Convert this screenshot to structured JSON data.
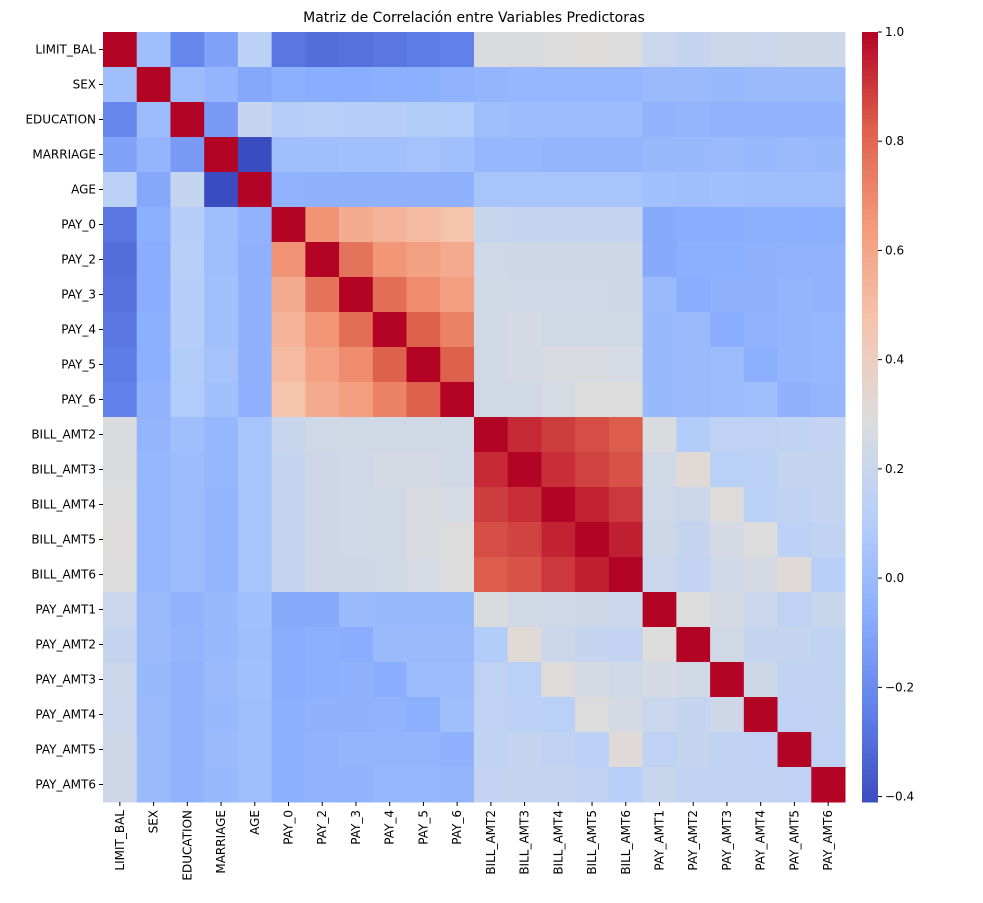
{
  "chart_data": {
    "type": "heatmap",
    "title": "Matriz de Correlación entre Variables Predictoras",
    "labels": [
      "LIMIT_BAL",
      "SEX",
      "EDUCATION",
      "MARRIAGE",
      "AGE",
      "PAY_0",
      "PAY_2",
      "PAY_3",
      "PAY_4",
      "PAY_5",
      "PAY_6",
      "BILL_AMT2",
      "BILL_AMT3",
      "BILL_AMT4",
      "BILL_AMT5",
      "BILL_AMT6",
      "PAY_AMT1",
      "PAY_AMT2",
      "PAY_AMT3",
      "PAY_AMT4",
      "PAY_AMT5",
      "PAY_AMT6"
    ],
    "values": [
      [
        1,
        0.02,
        -0.22,
        -0.11,
        0.14,
        -0.27,
        -0.3,
        -0.29,
        -0.27,
        -0.25,
        -0.24,
        0.28,
        0.28,
        0.29,
        0.3,
        0.29,
        0.2,
        0.18,
        0.21,
        0.2,
        0.22,
        0.22
      ],
      [
        0.02,
        1,
        0.01,
        -0.03,
        -0.09,
        -0.06,
        -0.07,
        -0.07,
        -0.06,
        -0.06,
        -0.04,
        -0.03,
        -0.02,
        -0.02,
        -0.02,
        -0.02,
        0.0,
        0.0,
        -0.01,
        0.0,
        0.0,
        0.0
      ],
      [
        -0.22,
        0.01,
        1,
        -0.14,
        0.18,
        0.11,
        0.12,
        0.11,
        0.11,
        0.1,
        0.09,
        0.02,
        0.01,
        0.01,
        0.01,
        0.01,
        -0.04,
        -0.03,
        -0.04,
        -0.04,
        -0.04,
        -0.04
      ],
      [
        -0.11,
        -0.03,
        -0.14,
        1,
        -0.41,
        0.02,
        0.02,
        0.03,
        0.03,
        0.04,
        0.03,
        -0.02,
        -0.02,
        -0.03,
        -0.03,
        -0.03,
        -0.01,
        -0.01,
        0.0,
        -0.01,
        0.0,
        -0.01
      ],
      [
        0.14,
        -0.09,
        0.18,
        -0.41,
        1,
        -0.04,
        -0.05,
        -0.05,
        -0.05,
        -0.05,
        -0.05,
        0.05,
        0.05,
        0.05,
        0.05,
        0.05,
        0.03,
        0.02,
        0.03,
        0.02,
        0.02,
        0.02
      ],
      [
        -0.27,
        -0.06,
        0.11,
        0.02,
        -0.04,
        1,
        0.67,
        0.57,
        0.54,
        0.51,
        0.47,
        0.19,
        0.18,
        0.18,
        0.18,
        0.18,
        -0.08,
        -0.07,
        -0.07,
        -0.06,
        -0.06,
        -0.06
      ],
      [
        -0.3,
        -0.07,
        0.12,
        0.02,
        -0.05,
        0.67,
        1,
        0.77,
        0.66,
        0.62,
        0.58,
        0.23,
        0.22,
        0.22,
        0.22,
        0.22,
        -0.08,
        -0.06,
        -0.06,
        -0.05,
        -0.04,
        -0.04
      ],
      [
        -0.29,
        -0.07,
        0.11,
        0.03,
        -0.05,
        0.57,
        0.77,
        1,
        0.78,
        0.69,
        0.63,
        0.24,
        0.23,
        0.23,
        0.23,
        0.22,
        0.0,
        -0.07,
        -0.05,
        -0.05,
        -0.03,
        -0.04
      ],
      [
        -0.27,
        -0.06,
        0.11,
        0.03,
        -0.05,
        0.54,
        0.66,
        0.78,
        1,
        0.82,
        0.72,
        0.24,
        0.25,
        0.24,
        0.24,
        0.24,
        -0.01,
        0.0,
        -0.07,
        -0.04,
        -0.03,
        -0.02
      ],
      [
        -0.25,
        -0.06,
        0.1,
        0.04,
        -0.05,
        0.51,
        0.62,
        0.69,
        0.82,
        1,
        0.82,
        0.24,
        0.25,
        0.27,
        0.27,
        0.26,
        -0.01,
        0.0,
        0.01,
        -0.06,
        -0.03,
        -0.02
      ],
      [
        -0.24,
        -0.04,
        0.09,
        0.03,
        -0.05,
        0.47,
        0.58,
        0.63,
        0.72,
        0.82,
        1,
        0.24,
        0.24,
        0.26,
        0.29,
        0.29,
        -0.01,
        0.0,
        0.01,
        0.02,
        -0.05,
        -0.03
      ],
      [
        0.28,
        -0.03,
        0.02,
        -0.02,
        0.05,
        0.19,
        0.23,
        0.24,
        0.24,
        0.24,
        0.24,
        1,
        0.93,
        0.89,
        0.86,
        0.83,
        0.28,
        0.1,
        0.15,
        0.15,
        0.16,
        0.17
      ],
      [
        0.28,
        -0.02,
        0.01,
        -0.02,
        0.05,
        0.18,
        0.22,
        0.23,
        0.25,
        0.25,
        0.24,
        0.93,
        1,
        0.92,
        0.88,
        0.85,
        0.24,
        0.32,
        0.13,
        0.14,
        0.18,
        0.18
      ],
      [
        0.29,
        -0.02,
        0.01,
        -0.03,
        0.05,
        0.18,
        0.22,
        0.23,
        0.24,
        0.27,
        0.26,
        0.89,
        0.92,
        1,
        0.94,
        0.9,
        0.23,
        0.21,
        0.3,
        0.13,
        0.16,
        0.18
      ],
      [
        0.3,
        -0.02,
        0.01,
        -0.03,
        0.05,
        0.18,
        0.22,
        0.23,
        0.24,
        0.27,
        0.29,
        0.86,
        0.88,
        0.94,
        1,
        0.95,
        0.22,
        0.18,
        0.25,
        0.29,
        0.14,
        0.16
      ],
      [
        0.29,
        -0.02,
        0.01,
        -0.03,
        0.05,
        0.18,
        0.22,
        0.22,
        0.24,
        0.26,
        0.29,
        0.83,
        0.85,
        0.9,
        0.95,
        1,
        0.2,
        0.17,
        0.23,
        0.25,
        0.31,
        0.12
      ],
      [
        0.2,
        0.0,
        -0.04,
        -0.01,
        0.03,
        -0.08,
        -0.08,
        0.0,
        -0.01,
        -0.01,
        -0.01,
        0.28,
        0.24,
        0.23,
        0.22,
        0.2,
        1,
        0.29,
        0.25,
        0.2,
        0.15,
        0.19
      ],
      [
        0.18,
        0.0,
        -0.03,
        -0.01,
        0.02,
        -0.07,
        -0.06,
        -0.07,
        0.0,
        0.0,
        0.0,
        0.1,
        0.32,
        0.21,
        0.18,
        0.17,
        0.29,
        1,
        0.24,
        0.18,
        0.18,
        0.16
      ],
      [
        0.21,
        -0.01,
        -0.04,
        0.0,
        0.03,
        -0.07,
        -0.06,
        -0.05,
        -0.07,
        0.01,
        0.01,
        0.15,
        0.13,
        0.3,
        0.25,
        0.23,
        0.25,
        0.24,
        1,
        0.22,
        0.16,
        0.16
      ],
      [
        0.2,
        0.0,
        -0.04,
        -0.01,
        0.02,
        -0.06,
        -0.05,
        -0.05,
        -0.04,
        -0.06,
        0.02,
        0.15,
        0.14,
        0.13,
        0.29,
        0.25,
        0.2,
        0.18,
        0.22,
        1,
        0.15,
        0.16
      ],
      [
        0.22,
        0.0,
        -0.04,
        0.0,
        0.02,
        -0.06,
        -0.04,
        -0.03,
        -0.03,
        -0.03,
        -0.05,
        0.16,
        0.18,
        0.16,
        0.14,
        0.31,
        0.15,
        0.18,
        0.16,
        0.15,
        1,
        0.15
      ],
      [
        0.22,
        0.0,
        -0.04,
        -0.01,
        0.02,
        -0.06,
        -0.04,
        -0.04,
        -0.02,
        -0.02,
        -0.03,
        0.17,
        0.18,
        0.18,
        0.16,
        0.12,
        0.19,
        0.16,
        0.16,
        0.16,
        0.15,
        1
      ]
    ],
    "colormap": "coolwarm",
    "clim": [
      -0.41,
      1.0
    ],
    "cticks": [
      {
        "value": -0.4,
        "label": "−0.4"
      },
      {
        "value": -0.2,
        "label": "−0.2"
      },
      {
        "value": 0.0,
        "label": "0.0"
      },
      0.2,
      0.4,
      0.6,
      0.8,
      {
        "value": 1.0,
        "label": "1.0"
      }
    ]
  }
}
